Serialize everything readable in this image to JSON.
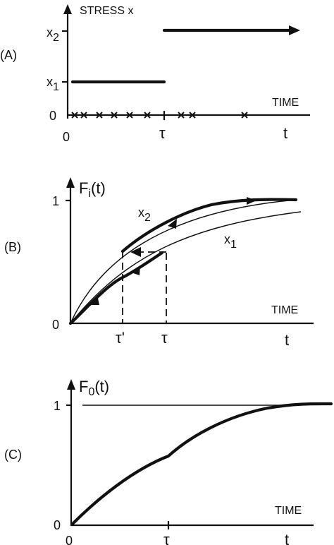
{
  "panelA": {
    "label": "(A)",
    "y_axis_title": "STRESS x",
    "level_high": "x",
    "level_high_sub": "2",
    "level_low": "x",
    "level_low_sub": "1",
    "zero": "0",
    "x_axis_title": "TIME",
    "origin": "0",
    "switch_time": "τ",
    "end_symbol": "t"
  },
  "panelB": {
    "label": "(B)",
    "y_axis_title": "F",
    "y_axis_title_sub": "i",
    "y_axis_title_arg": "(t)",
    "one": "1",
    "zero": "0",
    "curve_high": "x",
    "curve_high_sub": "2",
    "curve_low": "x",
    "curve_low_sub": "1",
    "x_axis_title": "TIME",
    "tau_prime": "τ'",
    "tau": "τ",
    "end_symbol": "t"
  },
  "panelC": {
    "label": "(C)",
    "y_axis_title": "F",
    "y_axis_title_sub": "0",
    "y_axis_title_arg": "(t)",
    "one": "1",
    "zero": "0",
    "x_axis_title": "TIME",
    "origin": "0",
    "tau": "τ",
    "end_symbol": "t"
  }
}
